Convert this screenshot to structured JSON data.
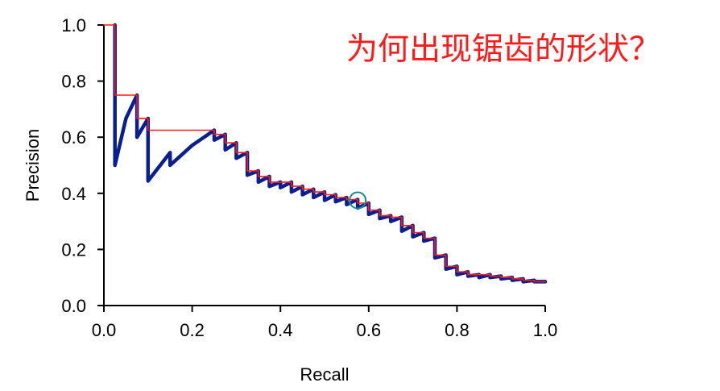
{
  "chart_data": {
    "type": "line",
    "xlabel": "Recall",
    "ylabel": "Precision",
    "xlim": [
      0.0,
      1.0
    ],
    "ylim": [
      0.0,
      1.0
    ],
    "x_ticks": [
      "0.0",
      "0.2",
      "0.4",
      "0.6",
      "0.8",
      "1.0"
    ],
    "y_ticks": [
      "0.0",
      "0.2",
      "0.4",
      "0.6",
      "0.8",
      "1.0"
    ],
    "grid": false,
    "annotation": "为何出现锯齿的形状？",
    "highlight_point": {
      "x": 0.575,
      "y": 0.375
    },
    "series": [
      {
        "color": "#0a1f8f",
        "style": "thick",
        "x": [
          0.025,
          0.025,
          0.025,
          0.05,
          0.075,
          0.075,
          0.1,
          0.1,
          0.15,
          0.15,
          0.2,
          0.25,
          0.25,
          0.275,
          0.275,
          0.3,
          0.3,
          0.325,
          0.325,
          0.35,
          0.35,
          0.375,
          0.375,
          0.4,
          0.4,
          0.425,
          0.425,
          0.45,
          0.45,
          0.475,
          0.475,
          0.5,
          0.5,
          0.525,
          0.525,
          0.55,
          0.55,
          0.575,
          0.575,
          0.6,
          0.6,
          0.625,
          0.625,
          0.65,
          0.65,
          0.675,
          0.675,
          0.7,
          0.7,
          0.725,
          0.725,
          0.75,
          0.75,
          0.775,
          0.775,
          0.8,
          0.8,
          0.825,
          0.825,
          0.85,
          0.85,
          0.875,
          0.875,
          0.9,
          0.9,
          0.925,
          0.925,
          0.95,
          0.95,
          0.975,
          0.975,
          1.0
        ],
        "y": [
          1.0,
          0.5,
          0.5,
          0.667,
          0.75,
          0.6,
          0.667,
          0.444,
          0.545,
          0.5,
          0.571,
          0.625,
          0.59,
          0.61,
          0.555,
          0.58,
          0.525,
          0.545,
          0.465,
          0.48,
          0.44,
          0.46,
          0.425,
          0.44,
          0.42,
          0.44,
          0.405,
          0.425,
          0.395,
          0.415,
          0.385,
          0.405,
          0.375,
          0.395,
          0.37,
          0.385,
          0.36,
          0.378,
          0.348,
          0.365,
          0.325,
          0.34,
          0.31,
          0.32,
          0.3,
          0.315,
          0.265,
          0.285,
          0.245,
          0.26,
          0.23,
          0.24,
          0.17,
          0.18,
          0.13,
          0.14,
          0.11,
          0.12,
          0.105,
          0.11,
          0.1,
          0.11,
          0.1,
          0.105,
          0.095,
          0.1,
          0.09,
          0.095,
          0.085,
          0.09,
          0.085,
          0.085
        ]
      },
      {
        "color": "#ff1a1a",
        "style": "thin",
        "x": [
          0.0,
          0.025,
          0.025,
          0.075,
          0.075,
          0.1,
          0.1,
          0.25,
          0.25,
          0.275,
          0.275,
          0.3,
          0.3,
          0.325,
          0.325,
          0.35,
          0.35,
          0.375,
          0.375,
          0.425,
          0.425,
          0.45,
          0.45,
          0.475,
          0.475,
          0.5,
          0.5,
          0.525,
          0.525,
          0.55,
          0.55,
          0.575,
          0.575,
          0.6,
          0.6,
          0.625,
          0.625,
          0.65,
          0.65,
          0.675,
          0.675,
          0.7,
          0.7,
          0.725,
          0.725,
          0.75,
          0.75,
          0.775,
          0.775,
          0.8,
          0.8,
          0.825,
          0.825,
          0.85,
          0.85,
          0.875,
          0.875,
          0.9,
          0.9,
          0.925,
          0.925,
          0.95,
          0.95,
          0.975,
          0.975,
          1.0
        ],
        "y": [
          1.0,
          1.0,
          0.75,
          0.75,
          0.667,
          0.667,
          0.625,
          0.625,
          0.61,
          0.61,
          0.58,
          0.58,
          0.545,
          0.545,
          0.48,
          0.48,
          0.46,
          0.46,
          0.44,
          0.44,
          0.425,
          0.425,
          0.415,
          0.415,
          0.405,
          0.405,
          0.395,
          0.395,
          0.385,
          0.385,
          0.378,
          0.378,
          0.365,
          0.365,
          0.34,
          0.34,
          0.32,
          0.32,
          0.315,
          0.315,
          0.285,
          0.285,
          0.26,
          0.26,
          0.24,
          0.24,
          0.18,
          0.18,
          0.14,
          0.14,
          0.12,
          0.12,
          0.11,
          0.11,
          0.11,
          0.11,
          0.105,
          0.105,
          0.1,
          0.1,
          0.095,
          0.095,
          0.09,
          0.09,
          0.085,
          0.085
        ]
      }
    ]
  }
}
